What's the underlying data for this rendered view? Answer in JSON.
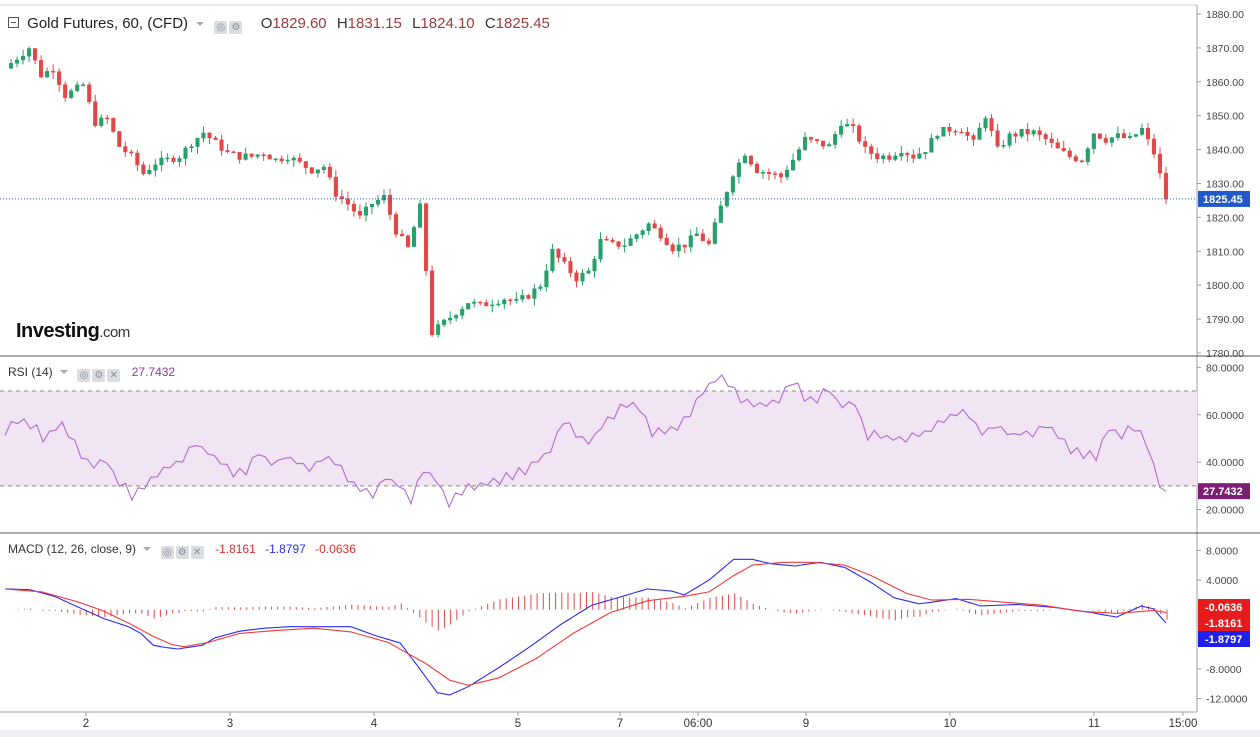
{
  "colors": {
    "up": "#26a06b",
    "down": "#e04848",
    "rsi": "#b36ad0",
    "rsi_band": "#f1e4f3",
    "macd": "#2c2cf0",
    "signal": "#ef3b3b",
    "hist": "#e04848",
    "price_tag": "#2159c9",
    "rsi_tag": "#7b1f75"
  },
  "header": {
    "title": "Gold Futures, 60, (CFD)",
    "o_label": "O",
    "open": "1829.60",
    "h_label": "H",
    "high": "1831.15",
    "l_label": "L",
    "low": "1824.10",
    "c_label": "C",
    "close": "1825.45"
  },
  "watermark": {
    "brand": "Investing",
    "suffix": ".com"
  },
  "rsi_legend": {
    "label": "RSI (14)",
    "value": "27.7432"
  },
  "macd_legend": {
    "label": "MACD (12, 26, close, 9)",
    "macd": "-1.8161",
    "signal": "-1.8797",
    "hist": "-0.0636"
  },
  "chart_data": [
    {
      "type": "candlestick",
      "title": "Gold Futures, 60, (CFD)",
      "ylim": [
        1780,
        1880
      ],
      "y_ticks": [
        "1880.00",
        "1870.00",
        "1860.00",
        "1850.00",
        "1840.00",
        "1830.00",
        "1820.00",
        "1810.00",
        "1800.00",
        "1790.00",
        "1780.00"
      ],
      "x_ticks": [
        "2",
        "3",
        "4",
        "5",
        "7",
        "06:00",
        "9",
        "10",
        "11",
        "15:00"
      ],
      "last_price": "1825.45",
      "path": [
        [
          0,
          1864
        ],
        [
          4,
          1870
        ],
        [
          6,
          1862
        ],
        [
          8,
          1864
        ],
        [
          10,
          1856
        ],
        [
          13,
          1859
        ],
        [
          15,
          1848
        ],
        [
          17,
          1849
        ],
        [
          19,
          1841
        ],
        [
          21,
          1838
        ],
        [
          23,
          1833
        ],
        [
          25,
          1836
        ],
        [
          27,
          1837
        ],
        [
          29,
          1838
        ],
        [
          31,
          1842
        ],
        [
          33,
          1845
        ],
        [
          35,
          1842
        ],
        [
          37,
          1839
        ],
        [
          39,
          1838
        ],
        [
          41,
          1838
        ],
        [
          43,
          1839
        ],
        [
          45,
          1837
        ],
        [
          47,
          1838
        ],
        [
          49,
          1836
        ],
        [
          51,
          1834
        ],
        [
          53,
          1835
        ],
        [
          55,
          1827
        ],
        [
          57,
          1824
        ],
        [
          59,
          1820
        ],
        [
          61,
          1824
        ],
        [
          63,
          1826
        ],
        [
          65,
          1816
        ],
        [
          67,
          1811
        ],
        [
          69,
          1823
        ],
        [
          71,
          1786
        ],
        [
          73,
          1789
        ],
        [
          75,
          1792
        ],
        [
          77,
          1795
        ],
        [
          79,
          1794
        ],
        [
          81,
          1795
        ],
        [
          83,
          1796
        ],
        [
          85,
          1795
        ],
        [
          87,
          1797
        ],
        [
          89,
          1800
        ],
        [
          91,
          1810
        ],
        [
          93,
          1806
        ],
        [
          95,
          1802
        ],
        [
          97,
          1804
        ],
        [
          99,
          1813
        ],
        [
          101,
          1812
        ],
        [
          103,
          1812
        ],
        [
          105,
          1815
        ],
        [
          107,
          1818
        ],
        [
          109,
          1815
        ],
        [
          111,
          1811
        ],
        [
          113,
          1812
        ],
        [
          115,
          1815
        ],
        [
          117,
          1812
        ],
        [
          119,
          1823
        ],
        [
          121,
          1833
        ],
        [
          123,
          1839
        ],
        [
          125,
          1834
        ],
        [
          127,
          1833
        ],
        [
          129,
          1832
        ],
        [
          131,
          1837
        ],
        [
          133,
          1843
        ],
        [
          135,
          1842
        ],
        [
          137,
          1841
        ],
        [
          139,
          1848
        ],
        [
          141,
          1846
        ],
        [
          143,
          1840
        ],
        [
          145,
          1838
        ],
        [
          147,
          1838
        ],
        [
          149,
          1840
        ],
        [
          151,
          1838
        ],
        [
          153,
          1840
        ],
        [
          155,
          1845
        ],
        [
          157,
          1846
        ],
        [
          159,
          1846
        ],
        [
          161,
          1842
        ],
        [
          163,
          1850
        ],
        [
          165,
          1840
        ],
        [
          167,
          1844
        ],
        [
          169,
          1845
        ],
        [
          171,
          1845
        ],
        [
          173,
          1843
        ],
        [
          175,
          1840
        ],
        [
          177,
          1838
        ],
        [
          179,
          1837
        ],
        [
          181,
          1845
        ],
        [
          183,
          1843
        ],
        [
          185,
          1844
        ],
        [
          187,
          1843
        ],
        [
          189,
          1846
        ],
        [
          191,
          1839
        ],
        [
          193,
          1826
        ]
      ]
    },
    {
      "type": "line",
      "name": "RSI (14)",
      "ylim": [
        16,
        81
      ],
      "y_ticks": [
        "80.0000",
        "60.0000",
        "40.0000",
        "20.0000"
      ],
      "bands": [
        30,
        70
      ],
      "last_value": "27.7432",
      "path": [
        [
          0,
          53
        ],
        [
          3,
          58
        ],
        [
          6,
          51
        ],
        [
          9,
          55
        ],
        [
          12,
          44
        ],
        [
          14,
          38
        ],
        [
          16,
          40
        ],
        [
          18,
          32
        ],
        [
          20,
          26
        ],
        [
          22,
          30
        ],
        [
          24,
          34
        ],
        [
          26,
          38
        ],
        [
          28,
          42
        ],
        [
          30,
          47
        ],
        [
          32,
          45
        ],
        [
          34,
          40
        ],
        [
          36,
          36
        ],
        [
          38,
          36
        ],
        [
          40,
          44
        ],
        [
          42,
          39
        ],
        [
          44,
          42
        ],
        [
          46,
          40
        ],
        [
          48,
          36
        ],
        [
          50,
          43
        ],
        [
          52,
          40
        ],
        [
          54,
          34
        ],
        [
          56,
          28
        ],
        [
          58,
          25
        ],
        [
          60,
          33
        ],
        [
          62,
          30
        ],
        [
          64,
          24
        ],
        [
          66,
          38
        ],
        [
          68,
          32
        ],
        [
          70,
          22
        ],
        [
          72,
          28
        ],
        [
          74,
          30
        ],
        [
          76,
          32
        ],
        [
          78,
          33
        ],
        [
          80,
          35
        ],
        [
          82,
          37
        ],
        [
          84,
          42
        ],
        [
          86,
          45
        ],
        [
          88,
          57
        ],
        [
          90,
          52
        ],
        [
          92,
          48
        ],
        [
          94,
          55
        ],
        [
          96,
          60
        ],
        [
          98,
          65
        ],
        [
          100,
          62
        ],
        [
          102,
          52
        ],
        [
          104,
          53
        ],
        [
          106,
          54
        ],
        [
          108,
          60
        ],
        [
          110,
          70
        ],
        [
          112,
          76
        ],
        [
          114,
          73
        ],
        [
          116,
          66
        ],
        [
          118,
          64
        ],
        [
          120,
          64
        ],
        [
          122,
          66
        ],
        [
          124,
          75
        ],
        [
          126,
          68
        ],
        [
          128,
          67
        ],
        [
          130,
          70
        ],
        [
          132,
          63
        ],
        [
          134,
          64
        ],
        [
          136,
          50
        ],
        [
          138,
          52
        ],
        [
          140,
          50
        ],
        [
          142,
          50
        ],
        [
          144,
          52
        ],
        [
          146,
          53
        ],
        [
          148,
          58
        ],
        [
          150,
          61
        ],
        [
          152,
          60
        ],
        [
          154,
          52
        ],
        [
          156,
          55
        ],
        [
          158,
          52
        ],
        [
          160,
          52
        ],
        [
          162,
          53
        ],
        [
          164,
          55
        ],
        [
          166,
          52
        ],
        [
          168,
          46
        ],
        [
          170,
          44
        ],
        [
          172,
          41
        ],
        [
          174,
          55
        ],
        [
          176,
          52
        ],
        [
          178,
          55
        ],
        [
          180,
          47
        ],
        [
          182,
          30
        ],
        [
          183,
          27.7
        ]
      ]
    },
    {
      "type": "line",
      "name": "MACD (12, 26, close, 9)",
      "ylim": [
        -13,
        9
      ],
      "y_ticks": [
        "8.0000",
        "4.0000",
        "-8.0000",
        "-12.0000"
      ],
      "series": [
        {
          "name": "MACD",
          "value": "-1.8161",
          "path": [
            [
              0,
              2.8
            ],
            [
              4,
              2.7
            ],
            [
              8,
              1.8
            ],
            [
              12,
              0.3
            ],
            [
              16,
              -1.2
            ],
            [
              20,
              -2.3
            ],
            [
              22,
              -3.2
            ],
            [
              24,
              -4.8
            ],
            [
              26,
              -5.1
            ],
            [
              28,
              -5.3
            ],
            [
              32,
              -4.8
            ],
            [
              34,
              -3.8
            ],
            [
              38,
              -2.9
            ],
            [
              42,
              -2.5
            ],
            [
              46,
              -2.3
            ],
            [
              50,
              -2.3
            ],
            [
              56,
              -2.3
            ],
            [
              60,
              -3.5
            ],
            [
              64,
              -4.5
            ],
            [
              67,
              -7.8
            ],
            [
              70,
              -11.2
            ],
            [
              72,
              -11.5
            ],
            [
              75,
              -10.4
            ],
            [
              80,
              -7.8
            ],
            [
              85,
              -5.0
            ],
            [
              90,
              -2.0
            ],
            [
              95,
              0.6
            ],
            [
              100,
              1.8
            ],
            [
              104,
              2.8
            ],
            [
              108,
              2.5
            ],
            [
              110,
              2.0
            ],
            [
              114,
              4.0
            ],
            [
              118,
              6.8
            ],
            [
              121,
              6.8
            ],
            [
              124,
              6.2
            ],
            [
              128,
              5.9
            ],
            [
              132,
              6.4
            ],
            [
              136,
              5.7
            ],
            [
              140,
              3.8
            ],
            [
              144,
              1.6
            ],
            [
              148,
              0.8
            ],
            [
              150,
              1.0
            ],
            [
              154,
              1.5
            ],
            [
              158,
              0.5
            ],
            [
              164,
              0.7
            ],
            [
              170,
              0.3
            ],
            [
              176,
              -0.4
            ],
            [
              180,
              -1.0
            ],
            [
              184,
              0.5
            ],
            [
              186,
              0.1
            ],
            [
              188,
              -1.8
            ]
          ]
        },
        {
          "name": "Signal",
          "value": "-1.8797",
          "path": [
            [
              0,
              2.8
            ],
            [
              6,
              2.4
            ],
            [
              12,
              1.0
            ],
            [
              16,
              -0.2
            ],
            [
              20,
              -1.8
            ],
            [
              24,
              -3.6
            ],
            [
              27,
              -4.7
            ],
            [
              29,
              -5.0
            ],
            [
              33,
              -4.4
            ],
            [
              38,
              -3.2
            ],
            [
              44,
              -2.8
            ],
            [
              50,
              -2.5
            ],
            [
              56,
              -3.0
            ],
            [
              62,
              -4.4
            ],
            [
              68,
              -7.2
            ],
            [
              72,
              -9.5
            ],
            [
              75,
              -10.2
            ],
            [
              80,
              -9.2
            ],
            [
              86,
              -6.6
            ],
            [
              92,
              -3.2
            ],
            [
              98,
              -0.4
            ],
            [
              104,
              1.2
            ],
            [
              110,
              1.8
            ],
            [
              114,
              2.4
            ],
            [
              118,
              4.6
            ],
            [
              121,
              6.0
            ],
            [
              126,
              6.4
            ],
            [
              131,
              6.4
            ],
            [
              136,
              6.0
            ],
            [
              140,
              4.7
            ],
            [
              146,
              2.2
            ],
            [
              150,
              1.3
            ],
            [
              156,
              1.4
            ],
            [
              162,
              1.0
            ],
            [
              168,
              0.6
            ],
            [
              174,
              -0.2
            ],
            [
              180,
              -0.5
            ],
            [
              186,
              -0.1
            ],
            [
              188,
              -0.4
            ]
          ]
        },
        {
          "name": "Histogram",
          "value": "-0.0636"
        }
      ]
    }
  ]
}
